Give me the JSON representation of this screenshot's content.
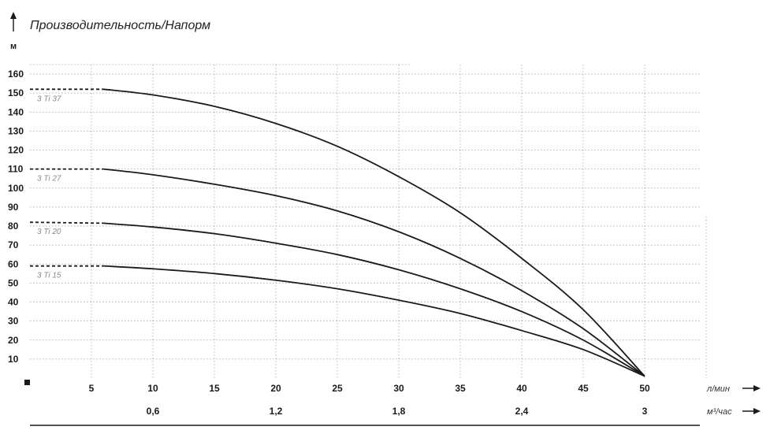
{
  "chart_data": {
    "type": "line",
    "title": "Производительность/Напорм",
    "ylabel": "м",
    "ylim": [
      0,
      160
    ],
    "yticks": [
      10,
      20,
      30,
      40,
      50,
      60,
      70,
      80,
      90,
      100,
      110,
      120,
      130,
      140,
      150,
      160
    ],
    "xlim": [
      0,
      55
    ],
    "x_primary": {
      "unit": "л/мин",
      "ticks": [
        5,
        10,
        15,
        20,
        25,
        30,
        35,
        40,
        45,
        50
      ]
    },
    "x_secondary": {
      "unit": "м³/час",
      "ticks": [
        {
          "at": 10,
          "label": "0,6"
        },
        {
          "at": 20,
          "label": "1,2"
        },
        {
          "at": 30,
          "label": "1,8"
        },
        {
          "at": 40,
          "label": "2,4"
        },
        {
          "at": 50,
          "label": "3"
        }
      ]
    },
    "grid": true,
    "series": [
      {
        "name": "3 Ti 37",
        "dashed_until": 6.2,
        "x": [
          0,
          6,
          10,
          15,
          20,
          25,
          30,
          35,
          40,
          45,
          50
        ],
        "y": [
          152,
          152,
          149,
          143,
          134,
          122,
          106,
          87,
          63,
          36,
          1
        ]
      },
      {
        "name": "3 Ti 27",
        "dashed_until": 6.2,
        "x": [
          0,
          6,
          10,
          15,
          20,
          25,
          30,
          35,
          40,
          45,
          50
        ],
        "y": [
          110,
          110,
          107,
          102,
          96,
          88,
          77,
          63,
          46,
          26,
          1
        ]
      },
      {
        "name": "3 Ti 20",
        "dashed_until": 6.2,
        "x": [
          0,
          6,
          10,
          15,
          20,
          25,
          30,
          35,
          40,
          45,
          50
        ],
        "y": [
          82,
          81.5,
          79.5,
          76,
          71,
          65,
          57,
          47,
          35,
          20,
          1
        ]
      },
      {
        "name": "3 Ti 15",
        "dashed_until": 6.2,
        "x": [
          0,
          6,
          10,
          15,
          20,
          25,
          30,
          35,
          40,
          45,
          50
        ],
        "y": [
          59,
          59,
          57.5,
          55,
          51.5,
          47,
          41,
          34,
          25,
          15,
          1
        ]
      }
    ]
  }
}
